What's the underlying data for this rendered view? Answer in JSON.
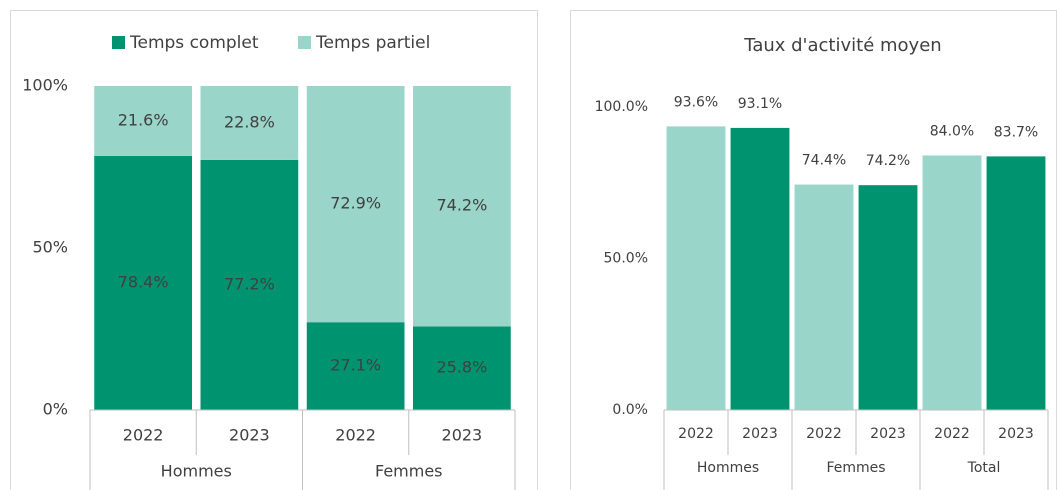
{
  "chart_data": [
    {
      "type": "stacked-bar",
      "categories": [
        "2022",
        "2023",
        "2022",
        "2023"
      ],
      "groups": [
        "Hommes",
        "Femmes"
      ],
      "series": [
        {
          "name": "Temps complet",
          "color": "#00936f",
          "values": [
            78.4,
            77.2,
            27.1,
            25.8
          ],
          "value_labels": [
            "78.4%",
            "77.2%",
            "27.1%",
            "25.8%"
          ]
        },
        {
          "name": "Temps partiel",
          "color": "#99d5c9",
          "values": [
            21.6,
            22.8,
            72.9,
            74.2
          ],
          "value_labels": [
            "21.6%",
            "22.8%",
            "72.9%",
            "74.2%"
          ]
        }
      ],
      "ylim": [
        0,
        100
      ],
      "yticks": [
        {
          "value": 0,
          "label": "0%"
        },
        {
          "value": 50,
          "label": "50%"
        },
        {
          "value": 100,
          "label": "100%"
        }
      ],
      "legend": "top"
    },
    {
      "type": "bar",
      "title": "Taux d'activité moyen",
      "categories": [
        "2022",
        "2023",
        "2022",
        "2023",
        "2022",
        "2023"
      ],
      "groups": [
        "Hommes",
        "Femmes",
        "Total"
      ],
      "values": [
        93.6,
        93.1,
        74.4,
        74.2,
        84.0,
        83.7
      ],
      "value_labels": [
        "93.6%",
        "93.1%",
        "74.4%",
        "74.2%",
        "84.0%",
        "83.7%"
      ],
      "colors": [
        "#99d5c9",
        "#00936f",
        "#99d5c9",
        "#00936f",
        "#99d5c9",
        "#00936f"
      ],
      "ylim": [
        0,
        100
      ],
      "yticks": [
        {
          "value": 0,
          "label": "0.0%"
        },
        {
          "value": 50,
          "label": "50.0%"
        },
        {
          "value": 100,
          "label": "100.0%"
        }
      ]
    }
  ]
}
